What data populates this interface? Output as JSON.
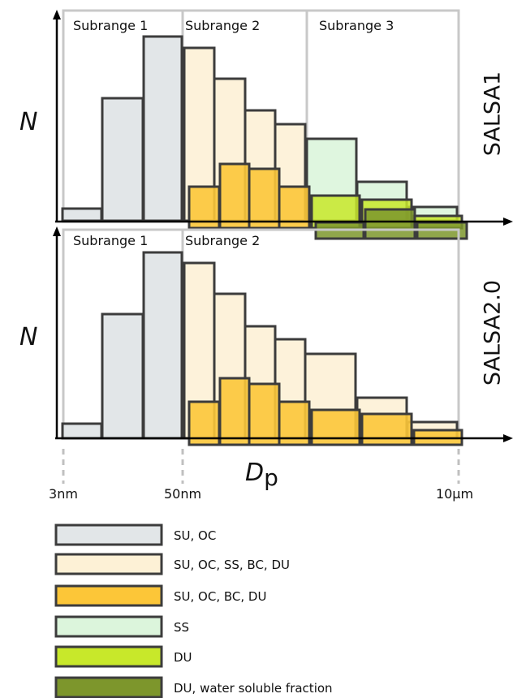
{
  "colors": {
    "su_oc": "#e2e6e8",
    "su_oc_ss_bc_du": "#fdf1d6",
    "su_oc_bc_du": "#fcc638",
    "ss": "#dcf5dc",
    "du": "#c8e82a",
    "du_wsf": "#7d962c",
    "edge": "#3c3c3c",
    "frame": "#c8c8c8"
  },
  "panels": [
    {
      "name": "SALSA1",
      "ylabel": "N",
      "subranges": [
        "Subrange 1",
        "Subrange 2",
        "Subrange 3"
      ]
    },
    {
      "name": "SALSA2.0",
      "ylabel": "N",
      "subranges": [
        "Subrange 1",
        "Subrange 2"
      ]
    }
  ],
  "xaxis": {
    "label_main": "D",
    "label_sub": "p",
    "ticks": [
      "3nm",
      "50nm",
      "10µm"
    ]
  },
  "legend": [
    {
      "label": "SU, OC",
      "color": "#e2e6e8"
    },
    {
      "label": "SU, OC, SS, BC, DU",
      "color": "#fdf1d6"
    },
    {
      "label": "SU, OC, BC, DU",
      "color": "#fcc638"
    },
    {
      "label": "SS",
      "color": "#dcf5dc"
    },
    {
      "label": "DU",
      "color": "#c8e82a"
    },
    {
      "label": "DU, water soluble fraction",
      "color": "#7d962c"
    }
  ]
}
